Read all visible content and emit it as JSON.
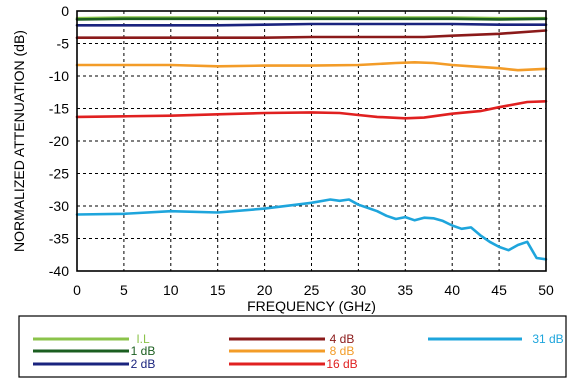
{
  "chart_data": {
    "type": "line",
    "title": "",
    "xlabel": "FREQUENCY (GHz)",
    "ylabel": "NORMALIZED ATTENUATION (dB)",
    "xlim": [
      0,
      50
    ],
    "ylim": [
      -40,
      0
    ],
    "xticks": [
      0,
      5,
      10,
      15,
      20,
      25,
      30,
      35,
      40,
      45,
      50
    ],
    "yticks": [
      0,
      -5,
      -10,
      -15,
      -20,
      -25,
      -30,
      -35,
      -40
    ],
    "grid": true,
    "legend_position": "bottom",
    "series": [
      {
        "name": "I.L",
        "color": "#8bc34a",
        "x": [
          0,
          5,
          10,
          15,
          20,
          25,
          30,
          35,
          40,
          45,
          50
        ],
        "y": [
          -1.1,
          -1.0,
          -1.0,
          -1.0,
          -1.0,
          -1.0,
          -1.0,
          -1.0,
          -1.0,
          -1.1,
          -1.1
        ]
      },
      {
        "name": "1 dB",
        "color": "#1b5e20",
        "x": [
          0,
          5,
          10,
          15,
          20,
          25,
          30,
          35,
          40,
          45,
          50
        ],
        "y": [
          -1.3,
          -1.2,
          -1.2,
          -1.2,
          -1.2,
          -1.2,
          -1.2,
          -1.2,
          -1.2,
          -1.3,
          -1.2
        ]
      },
      {
        "name": "2 dB",
        "color": "#1a237e",
        "x": [
          0,
          5,
          10,
          15,
          20,
          25,
          30,
          35,
          40,
          45,
          50
        ],
        "y": [
          -2.2,
          -2.2,
          -2.2,
          -2.2,
          -2.1,
          -2.0,
          -2.0,
          -2.0,
          -2.0,
          -2.1,
          -2.1
        ]
      },
      {
        "name": "4 dB",
        "color": "#8b1a1a",
        "x": [
          0,
          5,
          10,
          15,
          20,
          25,
          30,
          35,
          37,
          40,
          45,
          50
        ],
        "y": [
          -4.1,
          -4.1,
          -4.1,
          -4.1,
          -4.1,
          -4.0,
          -4.0,
          -4.0,
          -4.0,
          -3.8,
          -3.5,
          -3.0
        ]
      },
      {
        "name": "8 dB",
        "color": "#f39c28",
        "x": [
          0,
          5,
          10,
          15,
          20,
          25,
          30,
          34,
          36,
          38,
          40,
          42,
          45,
          47,
          50
        ],
        "y": [
          -8.3,
          -8.3,
          -8.3,
          -8.5,
          -8.4,
          -8.4,
          -8.3,
          -8.0,
          -7.9,
          -8.0,
          -8.3,
          -8.5,
          -8.8,
          -9.1,
          -8.9
        ]
      },
      {
        "name": "16 dB",
        "color": "#e02020",
        "x": [
          0,
          5,
          10,
          15,
          20,
          25,
          28,
          30,
          32,
          35,
          37,
          40,
          43,
          45,
          48,
          50
        ],
        "y": [
          -16.3,
          -16.2,
          -16.1,
          -15.9,
          -15.7,
          -15.6,
          -15.7,
          -16.0,
          -16.3,
          -16.5,
          -16.4,
          -15.8,
          -15.4,
          -14.8,
          -14.0,
          -13.9
        ]
      },
      {
        "name": "31 dB",
        "color": "#1ea5dc",
        "x": [
          0,
          5,
          10,
          15,
          20,
          25,
          27,
          28,
          29,
          30,
          31,
          32,
          33,
          34,
          35,
          36,
          37,
          38,
          39,
          40,
          41,
          42,
          43,
          44,
          45,
          46,
          47,
          48,
          49,
          50
        ],
        "y": [
          -31.3,
          -31.2,
          -30.8,
          -31.0,
          -30.4,
          -29.5,
          -29.0,
          -29.2,
          -29.0,
          -29.8,
          -30.3,
          -30.8,
          -31.5,
          -32.0,
          -31.7,
          -32.2,
          -31.8,
          -31.9,
          -32.3,
          -33.0,
          -33.5,
          -33.3,
          -34.5,
          -35.5,
          -36.3,
          -36.8,
          -36.0,
          -35.5,
          -38.0,
          -38.2
        ]
      }
    ]
  }
}
